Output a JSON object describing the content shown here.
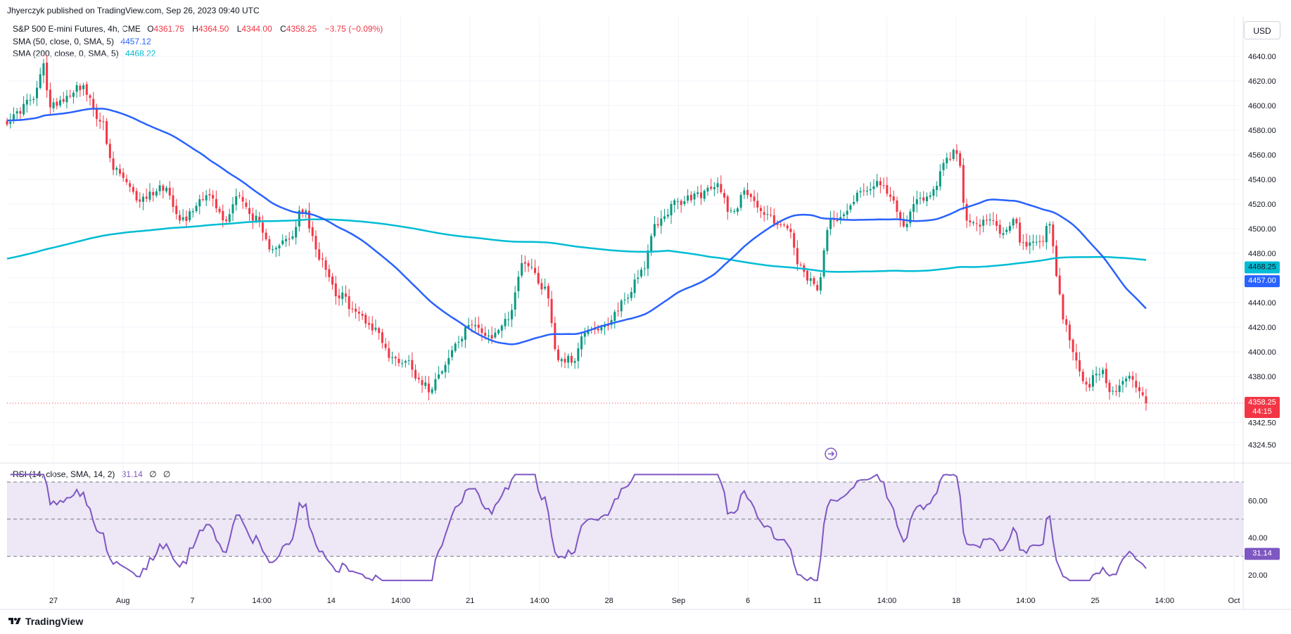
{
  "attribution": "Jhyerczyk published on TradingView.com, Sep 26, 2023 09:40 UTC",
  "currency": "USD",
  "footer": {
    "brand": "TradingView",
    "logo_icon": "tradingview-logo-icon"
  },
  "legend": {
    "symbol": "S&P 500 E-mini Futures, 4h, CME",
    "open_label": "O",
    "open": "4361.75",
    "high_label": "H",
    "high": "4364.50",
    "low_label": "L",
    "low": "4344.00",
    "close_label": "C",
    "close": "4358.25",
    "change": "−3.75 (−0.09%)",
    "sma50_label": "SMA (50, close, 0, SMA, 5)",
    "sma50_value": "4457.12",
    "sma200_label": "SMA (200, close, 0, SMA, 5)",
    "sma200_value": "4468.22",
    "rsi_label": "RSI (14, close, SMA, 14, 2)",
    "rsi_value": "31.14",
    "rsi_extra1": "∅",
    "rsi_extra2": "∅"
  },
  "colors": {
    "up": "#089981",
    "down": "#f23645",
    "sma50": "#2962ff",
    "sma200": "#00bcd4",
    "rsi": "#7e57c2",
    "rsi_band": "#ede7f6"
  },
  "chart_data": [
    {
      "type": "candlestick",
      "interval": "4h",
      "ylim": [
        4310,
        4650
      ],
      "yticks": [
        "4640.00",
        "4620.00",
        "4600.00",
        "4580.00",
        "4560.00",
        "4540.00",
        "4520.00",
        "4500.00",
        "4480.00",
        "4460.00",
        "4440.00",
        "4420.00",
        "4400.00",
        "4380.00",
        "4342.50",
        "4324.50"
      ],
      "ytick_values": [
        4640,
        4620,
        4600,
        4580,
        4560,
        4540,
        4520,
        4500,
        4480,
        4460,
        4440,
        4420,
        4400,
        4380,
        4342.5,
        4324.5
      ],
      "xtick_labels": [
        "27",
        "Aug",
        "7",
        "14:00",
        "14",
        "14:00",
        "21",
        "14:00",
        "28",
        "Sep",
        "6",
        "11",
        "14:00",
        "18",
        "14:00",
        "25",
        "14:00",
        "Oct"
      ],
      "price_anchors": [
        [
          0,
          4588
        ],
        [
          8,
          4605
        ],
        [
          11,
          4632
        ],
        [
          13,
          4598
        ],
        [
          16,
          4605
        ],
        [
          22,
          4616
        ],
        [
          28,
          4590
        ],
        [
          32,
          4548
        ],
        [
          40,
          4524
        ],
        [
          47,
          4534
        ],
        [
          53,
          4508
        ],
        [
          60,
          4528
        ],
        [
          66,
          4506
        ],
        [
          69,
          4528
        ],
        [
          74,
          4510
        ],
        [
          79,
          4486
        ],
        [
          85,
          4490
        ],
        [
          89,
          4515
        ],
        [
          94,
          4478
        ],
        [
          100,
          4446
        ],
        [
          106,
          4430
        ],
        [
          111,
          4418
        ],
        [
          116,
          4394
        ],
        [
          121,
          4392
        ],
        [
          124,
          4378
        ],
        [
          127,
          4370
        ],
        [
          131,
          4387
        ],
        [
          136,
          4408
        ],
        [
          140,
          4425
        ],
        [
          145,
          4410
        ],
        [
          150,
          4424
        ],
        [
          156,
          4474
        ],
        [
          162,
          4452
        ],
        [
          166,
          4395
        ],
        [
          170,
          4393
        ],
        [
          175,
          4420
        ],
        [
          180,
          4418
        ],
        [
          186,
          4442
        ],
        [
          191,
          4466
        ],
        [
          196,
          4505
        ],
        [
          201,
          4520
        ],
        [
          209,
          4528
        ],
        [
          214,
          4535
        ],
        [
          218,
          4514
        ],
        [
          223,
          4530
        ],
        [
          228,
          4512
        ],
        [
          233,
          4504
        ],
        [
          236,
          4496
        ],
        [
          238,
          4472
        ],
        [
          241,
          4458
        ],
        [
          244,
          4452
        ],
        [
          248,
          4506
        ],
        [
          252,
          4514
        ],
        [
          257,
          4530
        ],
        [
          262,
          4538
        ],
        [
          266,
          4525
        ],
        [
          270,
          4504
        ],
        [
          274,
          4522
        ],
        [
          279,
          4530
        ],
        [
          282,
          4555
        ],
        [
          286,
          4562
        ],
        [
          289,
          4510
        ],
        [
          292,
          4502
        ],
        [
          296,
          4506
        ],
        [
          300,
          4494
        ],
        [
          303,
          4506
        ],
        [
          306,
          4486
        ],
        [
          311,
          4486
        ],
        [
          314,
          4503
        ],
        [
          316,
          4462
        ],
        [
          318,
          4428
        ],
        [
          321,
          4400
        ],
        [
          323,
          4385
        ],
        [
          325,
          4370
        ],
        [
          328,
          4380
        ],
        [
          330,
          4386
        ],
        [
          332,
          4366
        ],
        [
          335,
          4372
        ],
        [
          338,
          4382
        ],
        [
          341,
          4368
        ],
        [
          343,
          4358
        ]
      ],
      "last_price": "4358.25",
      "countdown": "44:15",
      "sma50_tag": "4457.00",
      "sma200_tag": "4468.25"
    },
    {
      "type": "line",
      "name": "RSI",
      "ylim": [
        15,
        75
      ],
      "yticks": [
        "60.00",
        "40.00",
        "20.00"
      ],
      "ytick_values": [
        60,
        40,
        20
      ],
      "bands": [
        70,
        50,
        30
      ],
      "last_value": "31.14"
    }
  ]
}
